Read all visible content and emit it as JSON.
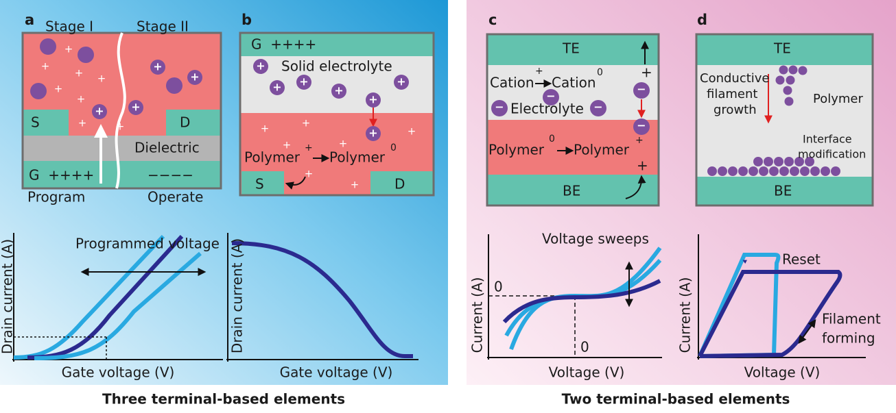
{
  "panels": {
    "a": {
      "label": "a",
      "stage1": "Stage I",
      "stage2": "Stage II",
      "source": "S",
      "drain": "D",
      "dielectric": "Dielectric",
      "gate": "G  ++++",
      "gate_right": "−−−−",
      "program": "Program",
      "operate": "Operate"
    },
    "b": {
      "label": "b",
      "gate": "G  ++++",
      "electrolyte": "Solid electrolyte",
      "reaction": {
        "left": "Polymer",
        "left_sup": "+",
        "right": "Polymer",
        "right_sup": "0"
      },
      "source": "S",
      "drain": "D"
    },
    "c": {
      "label": "c",
      "top": "TE",
      "bottom": "BE",
      "reaction1": {
        "left": "Cation",
        "left_sup": "+",
        "right": "Cation",
        "right_sup": "0"
      },
      "electrolyte": "Electrolyte",
      "reaction2": {
        "left": "Polymer",
        "left_sup": "0",
        "right": "Polymer",
        "right_sup": "+"
      }
    },
    "d": {
      "label": "d",
      "top": "TE",
      "bottom": "BE",
      "filament": [
        "Conductive",
        "filament",
        "growth"
      ],
      "polymer": "Polymer",
      "interface": [
        "Interface",
        "modification"
      ]
    }
  },
  "graphs": {
    "a": {
      "annotation": "Programmed voltage",
      "ylabel": "Drain current (A)",
      "xlabel": "Gate voltage (V)"
    },
    "b": {
      "ylabel": "Drain current (A)",
      "xlabel": "Gate voltage (V)"
    },
    "c": {
      "annotation": "Voltage sweeps",
      "ylabel": "Current (A)",
      "xlabel": "Voltage (V)",
      "y_zero": "0",
      "x_zero": "0"
    },
    "d": {
      "annotation": "Reset",
      "forming": [
        "Filament",
        "forming"
      ],
      "ylabel": "Current (A)",
      "xlabel": "Voltage (V)"
    }
  },
  "symbols": {
    "plus": "+",
    "minus": "−"
  },
  "captions": {
    "left": "Three terminal-based elements",
    "right": "Two terminal-based elements"
  }
}
